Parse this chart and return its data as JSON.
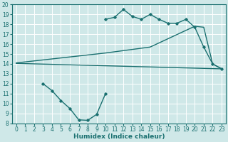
{
  "bg_color": "#cfe8e8",
  "grid_color": "#ffffff",
  "line_color": "#1a7070",
  "xlabel": "Humidex (Indice chaleur)",
  "xlim": [
    -0.5,
    23.5
  ],
  "ylim": [
    8,
    20
  ],
  "xticks": [
    0,
    1,
    2,
    3,
    4,
    5,
    6,
    7,
    8,
    9,
    10,
    11,
    12,
    13,
    14,
    15,
    16,
    17,
    18,
    19,
    20,
    21,
    22,
    23
  ],
  "yticks": [
    8,
    9,
    10,
    11,
    12,
    13,
    14,
    15,
    16,
    17,
    18,
    19,
    20
  ],
  "line1_x": [
    10,
    11,
    12,
    13,
    14,
    15,
    16,
    17,
    18,
    19,
    20,
    21,
    22,
    23
  ],
  "line1_y": [
    18.5,
    18.7,
    19.5,
    18.8,
    18.5,
    19.0,
    18.5,
    18.1,
    18.1,
    18.5,
    17.7,
    15.7,
    14.0,
    13.5
  ],
  "line2_x": [
    0,
    10,
    15,
    20,
    21,
    22,
    23
  ],
  "line2_y": [
    14.1,
    15.1,
    15.7,
    17.8,
    17.7,
    14.0,
    13.5
  ],
  "line3_x": [
    0,
    23
  ],
  "line3_y": [
    14.05,
    13.5
  ],
  "line4_x": [
    3,
    4,
    5,
    6,
    7,
    8,
    9,
    10
  ],
  "line4_y": [
    12.0,
    11.3,
    10.3,
    9.5,
    8.35,
    8.3,
    8.9,
    11.0
  ],
  "tick_fontsize": 5.5,
  "xlabel_fontsize": 6.5
}
